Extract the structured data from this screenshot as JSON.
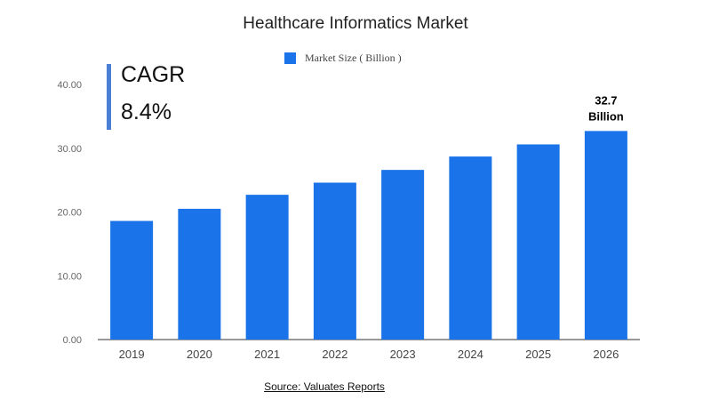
{
  "chart_data": {
    "type": "bar",
    "title": "Healthcare Informatics Market",
    "legend": [
      "Market Size ( Billion )"
    ],
    "categories": [
      "2019",
      "2020",
      "2021",
      "2022",
      "2023",
      "2024",
      "2025",
      "2026"
    ],
    "series": [
      {
        "name": "Market Size ( Billion )",
        "values": [
          18.6,
          20.5,
          22.7,
          24.6,
          26.6,
          28.7,
          30.6,
          32.7
        ]
      }
    ],
    "yticks": [
      "0.00",
      "10.00",
      "20.00",
      "30.00",
      "40.00"
    ],
    "ylim": [
      0,
      40
    ],
    "data_label": {
      "line1": "32.7",
      "line2": "Billion"
    },
    "bar_color": "#1a73e8",
    "grid": false
  },
  "cagr": {
    "label": "CAGR",
    "value": "8.4%"
  },
  "source": "Source: Valuates Reports"
}
